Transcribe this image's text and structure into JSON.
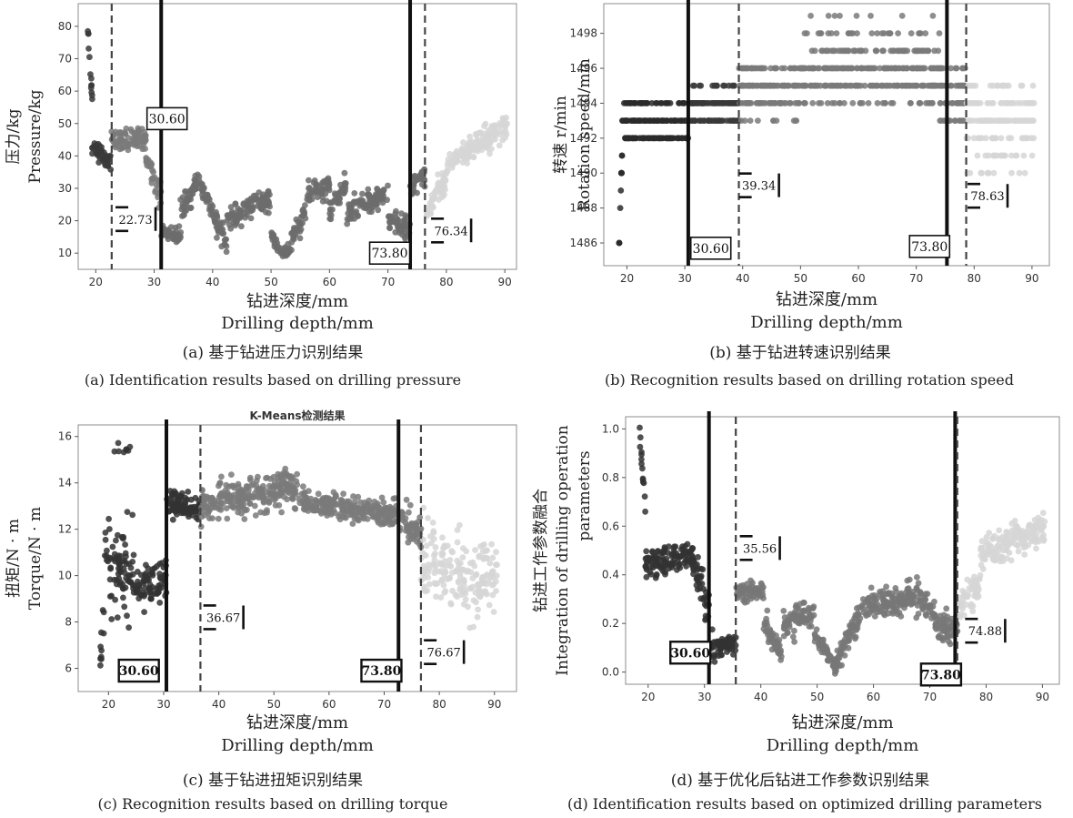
{
  "figure": {
    "panels": [
      {
        "id": "a",
        "caption_zh": "(a) 基于钻进压力识别结果",
        "caption_en": "(a) Identification results based on drilling pressure"
      },
      {
        "id": "b",
        "caption_zh": "(b) 基于钻进转速识别结果",
        "caption_en": "(b) Recognition results based on drilling rotation speed"
      },
      {
        "id": "c",
        "caption_zh": "(c) 基于钻进扭矩识别结果",
        "caption_en": "(c) Recognition results based on drilling torque"
      },
      {
        "id": "d",
        "caption_zh": "(d) 基于优化后钻进工作参数识别结果",
        "caption_en": "(d) Identification results based on optimized drilling parameters"
      }
    ]
  },
  "chart_data": [
    {
      "id": "a",
      "type": "scatter",
      "title": "",
      "xlabel": "钻进深度/mm",
      "xlabel_en": "Drilling depth/mm",
      "ylabel": "压力/kg",
      "ylabel_en": "Pressure/kg",
      "xlim": [
        17,
        92
      ],
      "ylim": [
        5,
        87
      ],
      "xticks": [
        20,
        30,
        40,
        50,
        60,
        70,
        80,
        90
      ],
      "yticks": [
        10,
        20,
        30,
        40,
        50,
        60,
        70,
        80
      ],
      "series_colors": [
        "#3a3a3a",
        "#7a7a7a",
        "#6c6c6c",
        "#d6d6d6"
      ],
      "series_ranges": [
        [
          18.5,
          22.7
        ],
        [
          22.7,
          31.2
        ],
        [
          31.2,
          76.3
        ],
        [
          76.3,
          90.5
        ]
      ],
      "solid_lines": [
        31.2,
        73.8
      ],
      "dashed_lines": [
        22.73,
        76.34
      ],
      "boxed_labels": [
        {
          "text": "30.60",
          "x": 32.2,
          "y": 51.5
        },
        {
          "text": "73.80",
          "x": 70.3,
          "y": 10
        }
      ],
      "bracket_labels": [
        {
          "text": "22.73",
          "x": 26.5,
          "y": 20.5
        },
        {
          "text": "76.34",
          "x": 80.5,
          "y": 17
        }
      ],
      "segments": [
        {
          "x0": 18.5,
          "x1": 19.4,
          "y0": 83,
          "y1": 58,
          "sd": 2.5
        },
        {
          "x0": 19.4,
          "x1": 22.7,
          "y0": 43,
          "y1": 38,
          "sd": 2.5
        },
        {
          "x0": 22.7,
          "x1": 28.6,
          "y0": 44,
          "y1": 46,
          "sd": 3
        },
        {
          "x0": 28.6,
          "x1": 31.2,
          "y0": 40,
          "y1": 27,
          "sd": 4
        },
        {
          "x0": 31.2,
          "x1": 34.5,
          "y0": 17,
          "y1": 15,
          "sd": 2
        },
        {
          "x0": 34.5,
          "x1": 38,
          "y0": 22,
          "y1": 34,
          "sd": 3
        },
        {
          "x0": 38,
          "x1": 42.5,
          "y0": 31,
          "y1": 12,
          "sd": 3
        },
        {
          "x0": 42.5,
          "x1": 50,
          "y0": 20,
          "y1": 27,
          "sd": 3
        },
        {
          "x0": 50,
          "x1": 51.5,
          "y0": 16,
          "y1": 11,
          "sd": 2
        },
        {
          "x0": 51.5,
          "x1": 53.5,
          "y0": 10,
          "y1": 11,
          "sd": 2
        },
        {
          "x0": 53.5,
          "x1": 56,
          "y0": 14,
          "y1": 23,
          "sd": 3
        },
        {
          "x0": 56,
          "x1": 60,
          "y0": 27,
          "y1": 31,
          "sd": 3
        },
        {
          "x0": 60,
          "x1": 63,
          "y0": 23,
          "y1": 32,
          "sd": 3
        },
        {
          "x0": 63,
          "x1": 70,
          "y0": 22,
          "y1": 29,
          "sd": 3
        },
        {
          "x0": 70,
          "x1": 73.8,
          "y0": 21,
          "y1": 17,
          "sd": 3
        },
        {
          "x0": 73.8,
          "x1": 76.3,
          "y0": 30,
          "y1": 34,
          "sd": 3
        },
        {
          "x0": 76.3,
          "x1": 80,
          "y0": 22,
          "y1": 33,
          "sd": 4
        },
        {
          "x0": 80,
          "x1": 90.5,
          "y0": 37,
          "y1": 50,
          "sd": 3.5
        }
      ]
    },
    {
      "id": "b",
      "type": "scatter",
      "title": "",
      "xlabel": "钻进深度/mm",
      "xlabel_en": "Drilling depth/mm",
      "ylabel": "转速 r/min",
      "ylabel_en": "Rotation speed/min",
      "xlim": [
        16,
        93
      ],
      "ylim": [
        1484.7,
        1499.7
      ],
      "xticks": [
        20,
        30,
        40,
        50,
        60,
        70,
        80,
        90
      ],
      "yticks": [
        1486,
        1488,
        1490,
        1492,
        1494,
        1496,
        1498
      ],
      "series_colors": [
        "#2a2a2a",
        "#3a3a3a",
        "#7a7a7a",
        "#d6d6d6"
      ],
      "series_ranges": [
        [
          18.5,
          30.6
        ],
        [
          30.6,
          39.3
        ],
        [
          39.3,
          78.6
        ],
        [
          78.6,
          90.5
        ]
      ],
      "solid_lines": [
        30.6,
        75.3
      ],
      "dashed_lines": [
        39.34,
        78.63
      ],
      "boxed_labels": [
        {
          "text": "30.60",
          "x": 34.5,
          "y": 1485.7
        },
        {
          "text": "73.80",
          "x": 72.3,
          "y": 1485.8
        }
      ],
      "bracket_labels": [
        {
          "text": "39.34",
          "x": 42.5,
          "y": 1489.3
        },
        {
          "text": "78.63",
          "x": 82,
          "y": 1488.7
        }
      ],
      "levels_note": "speed values occur at 1 r/min steps",
      "segments": [
        {
          "x0": 18.5,
          "x1": 19.2,
          "y0": 1485,
          "y1": 1491,
          "sd": 0,
          "levels": [
            1485,
            1486,
            1487,
            1488,
            1489,
            1490,
            1491
          ]
        },
        {
          "x0": 19.2,
          "x1": 30.6,
          "y0": 1493,
          "y1": 1493,
          "sd": 0,
          "levels": [
            1492,
            1493,
            1494
          ],
          "weights": [
            0.35,
            0.5,
            0.15
          ]
        },
        {
          "x0": 30.6,
          "x1": 39.3,
          "y0": 1494,
          "y1": 1494,
          "sd": 0,
          "levels": [
            1493,
            1494,
            1495
          ],
          "weights": [
            0.3,
            0.62,
            0.08
          ]
        },
        {
          "x0": 39.3,
          "x1": 50,
          "y0": 1495,
          "y1": 1495,
          "sd": 0,
          "levels": [
            1493,
            1494,
            1495,
            1496
          ],
          "weights": [
            0.1,
            0.3,
            0.4,
            0.2
          ]
        },
        {
          "x0": 50,
          "x1": 74,
          "y0": 1496,
          "y1": 1496,
          "sd": 0,
          "levels": [
            1494,
            1495,
            1496,
            1497,
            1498,
            1499
          ],
          "weights": [
            0.08,
            0.3,
            0.32,
            0.18,
            0.08,
            0.04
          ]
        },
        {
          "x0": 74,
          "x1": 78.6,
          "y0": 1495,
          "y1": 1495,
          "sd": 0,
          "levels": [
            1493,
            1494,
            1495,
            1496
          ],
          "weights": [
            0.15,
            0.3,
            0.35,
            0.2
          ]
        },
        {
          "x0": 78.6,
          "x1": 90.5,
          "y0": 1493,
          "y1": 1493,
          "sd": 0,
          "levels": [
            1490,
            1491,
            1492,
            1493,
            1494,
            1495
          ],
          "weights": [
            0.05,
            0.1,
            0.2,
            0.35,
            0.22,
            0.08
          ]
        }
      ]
    },
    {
      "id": "c",
      "type": "scatter",
      "title": "K-Means检测结果",
      "xlabel": "钻进深度/mm",
      "xlabel_en": "Drilling depth/mm",
      "ylabel": "扭矩/N · m",
      "ylabel_en": "Torque/N · m",
      "xlim": [
        14.5,
        94
      ],
      "ylim": [
        5.0,
        16.5
      ],
      "xticks": [
        20,
        30,
        40,
        50,
        60,
        70,
        80,
        90
      ],
      "yticks": [
        6,
        8,
        10,
        12,
        14,
        16
      ],
      "series_colors": [
        "#333333",
        "#333333",
        "#7a7a7a",
        "#d6d6d6"
      ],
      "series_ranges": [
        [
          18.5,
          30.5
        ],
        [
          30.5,
          36.7
        ],
        [
          36.7,
          76.7
        ],
        [
          76.7,
          90.5
        ]
      ],
      "solid_lines": [
        30.5,
        72.6
      ],
      "dashed_lines": [
        36.67,
        76.67
      ],
      "boxed_labels": [
        {
          "text": "30.60",
          "x": 25.5,
          "y": 5.9
        },
        {
          "text": "73.80",
          "x": 69.5,
          "y": 5.9
        }
      ],
      "bracket_labels": [
        {
          "text": "36.67",
          "x": 40.5,
          "y": 8.2
        },
        {
          "text": "76.67",
          "x": 80.5,
          "y": 6.7
        }
      ],
      "segments": [
        {
          "x0": 18.5,
          "x1": 19.2,
          "y0": 6,
          "y1": 8,
          "sd": 0.9
        },
        {
          "x0": 19.2,
          "x1": 25,
          "y0": 10.5,
          "y1": 10,
          "sd": 1.6
        },
        {
          "x0": 20.5,
          "x1": 25.5,
          "y0": 15.4,
          "y1": 15.4,
          "sd": 0.3,
          "n": 8
        },
        {
          "x0": 25,
          "x1": 30.5,
          "y0": 9.3,
          "y1": 9.8,
          "sd": 0.8
        },
        {
          "x0": 30.5,
          "x1": 36.7,
          "y0": 13.2,
          "y1": 12.9,
          "sd": 0.5
        },
        {
          "x0": 36.7,
          "x1": 52,
          "y0": 13.1,
          "y1": 13.6,
          "sd": 0.7
        },
        {
          "x0": 52,
          "x1": 55,
          "y0": 14,
          "y1": 13.5,
          "sd": 0.6
        },
        {
          "x0": 55,
          "x1": 72.6,
          "y0": 13.2,
          "y1": 12.6,
          "sd": 0.5
        },
        {
          "x0": 72.6,
          "x1": 76.7,
          "y0": 12.6,
          "y1": 11.8,
          "sd": 0.7
        },
        {
          "x0": 76.7,
          "x1": 90.5,
          "y0": 10.5,
          "y1": 9.8,
          "sd": 1.5
        }
      ]
    },
    {
      "id": "d",
      "type": "scatter",
      "title": "",
      "xlabel": "钻进深度/mm",
      "xlabel_en": "Drilling depth/mm",
      "ylabel": "钻进工作参数融合",
      "ylabel_en": "Integration of drilling operation",
      "ylabel_en2": "parameters",
      "xlim": [
        16,
        93
      ],
      "ylim": [
        -0.05,
        1.05
      ],
      "xticks": [
        20,
        30,
        40,
        50,
        60,
        70,
        80,
        90
      ],
      "yticks": [
        0.0,
        0.2,
        0.4,
        0.6,
        0.8,
        1.0
      ],
      "series_colors": [
        "#333333",
        "#333333",
        "#777777",
        "#d6d6d6"
      ],
      "series_ranges": [
        [
          18.5,
          30.8
        ],
        [
          30.8,
          35.6
        ],
        [
          35.6,
          74.9
        ],
        [
          74.9,
          90.5
        ]
      ],
      "solid_lines": [
        30.8,
        74.5
      ],
      "dashed_lines": [
        35.56,
        74.88
      ],
      "boxed_labels": [
        {
          "text": "30.60",
          "x": 27.5,
          "y": 0.08
        },
        {
          "text": "73.80",
          "x": 72,
          "y": -0.01
        }
      ],
      "bracket_labels": [
        {
          "text": "35.56",
          "x": 39.5,
          "y": 0.51
        },
        {
          "text": "74.88",
          "x": 79.5,
          "y": 0.17
        }
      ],
      "segments": [
        {
          "x0": 18.5,
          "x1": 19.5,
          "y0": 1.0,
          "y1": 0.65,
          "sd": 0.05
        },
        {
          "x0": 19.5,
          "x1": 28,
          "y0": 0.44,
          "y1": 0.48,
          "sd": 0.05
        },
        {
          "x0": 28,
          "x1": 30.8,
          "y0": 0.45,
          "y1": 0.25,
          "sd": 0.06
        },
        {
          "x0": 30.8,
          "x1": 35.6,
          "y0": 0.1,
          "y1": 0.12,
          "sd": 0.04
        },
        {
          "x0": 35.6,
          "x1": 40.5,
          "y0": 0.33,
          "y1": 0.33,
          "sd": 0.04
        },
        {
          "x0": 40.5,
          "x1": 44,
          "y0": 0.2,
          "y1": 0.06,
          "sd": 0.04
        },
        {
          "x0": 44,
          "x1": 49.5,
          "y0": 0.2,
          "y1": 0.25,
          "sd": 0.05
        },
        {
          "x0": 49.5,
          "x1": 53.5,
          "y0": 0.15,
          "y1": 0.01,
          "sd": 0.03
        },
        {
          "x0": 53.5,
          "x1": 58,
          "y0": 0.05,
          "y1": 0.25,
          "sd": 0.05
        },
        {
          "x0": 58,
          "x1": 66,
          "y0": 0.27,
          "y1": 0.3,
          "sd": 0.05
        },
        {
          "x0": 66,
          "x1": 71,
          "y0": 0.33,
          "y1": 0.25,
          "sd": 0.05
        },
        {
          "x0": 71,
          "x1": 74.9,
          "y0": 0.18,
          "y1": 0.18,
          "sd": 0.06
        },
        {
          "x0": 74.9,
          "x1": 79,
          "y0": 0.27,
          "y1": 0.38,
          "sd": 0.07
        },
        {
          "x0": 79,
          "x1": 90.5,
          "y0": 0.48,
          "y1": 0.6,
          "sd": 0.06
        }
      ]
    }
  ]
}
